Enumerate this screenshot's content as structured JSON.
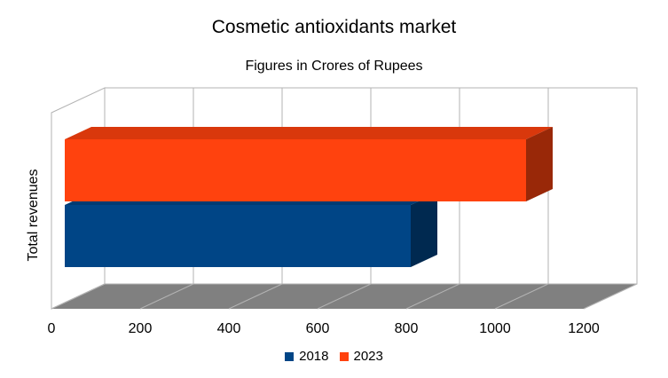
{
  "chart_data": {
    "type": "bar",
    "orientation": "horizontal",
    "three_d": true,
    "title": "Cosmetic antioxidants market",
    "subtitle": "Figures in Crores of Rupees",
    "categories": [
      "Total revenues"
    ],
    "series": [
      {
        "name": "2018",
        "values": [
          840
        ],
        "color": "#004586"
      },
      {
        "name": "2023",
        "values": [
          1100
        ],
        "color": "#ff420e"
      }
    ],
    "xlim": [
      0,
      1200
    ],
    "xticks": [
      "0",
      "200",
      "400",
      "600",
      "800",
      "1000",
      "1200"
    ],
    "grid": true,
    "legend_position": "bottom"
  }
}
